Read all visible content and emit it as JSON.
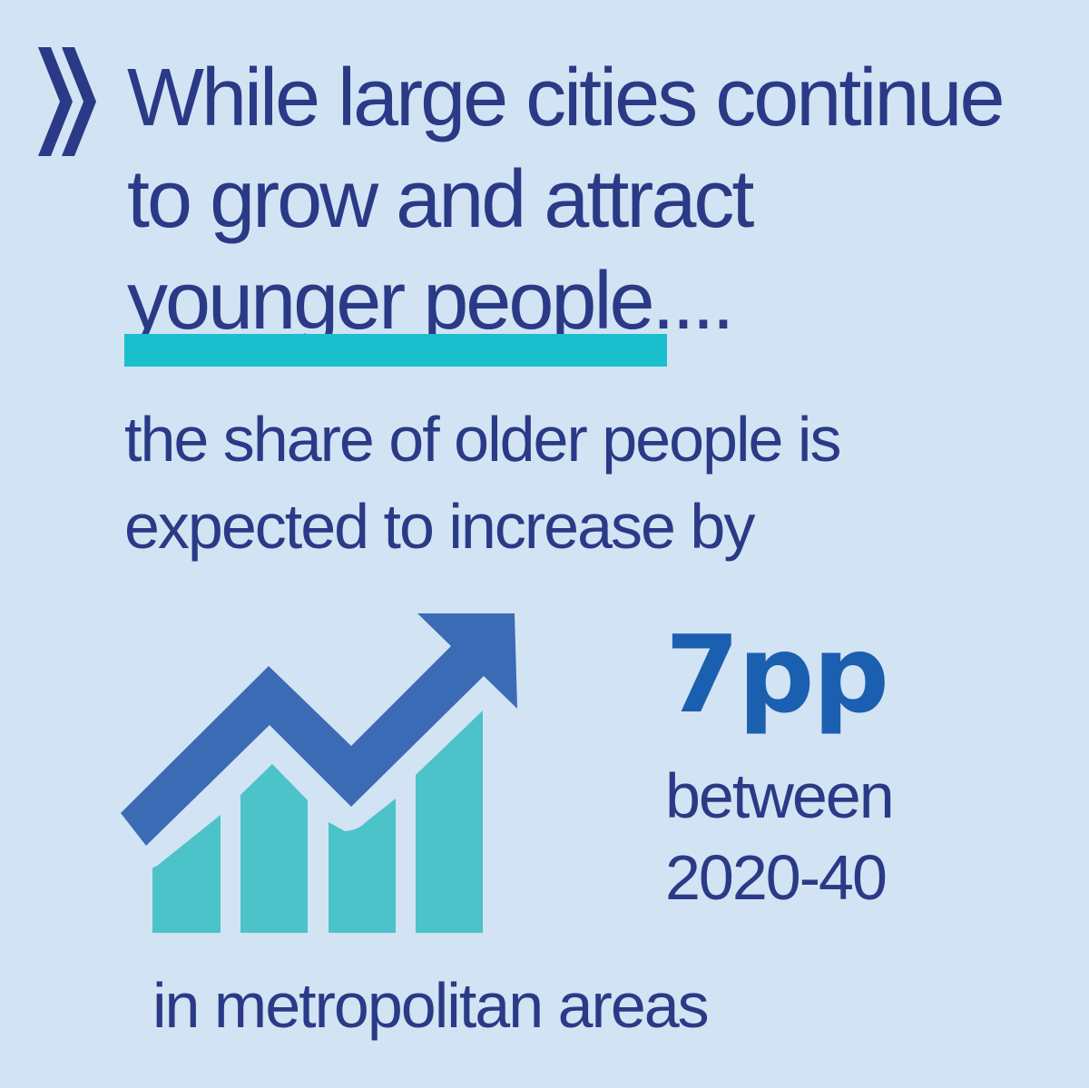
{
  "headline": {
    "lines": [
      "While large cities continue",
      "to grow and attract",
      "younger people...."
    ]
  },
  "subtext": {
    "lines": [
      "the share of older people is",
      "expected to increase by"
    ]
  },
  "stat": {
    "value": "7pp",
    "period_lines": [
      "between",
      "2020-40"
    ]
  },
  "footer": {
    "text": "in metropolitan areas"
  },
  "icons": {
    "logo": "double-chevron-icon",
    "chart": "rising-bar-chart-arrow-icon"
  },
  "colors": {
    "background": "#d2e3f4",
    "text": "#2b3a86",
    "highlight_bar": "#19bfcd",
    "stat_value": "#1b5fb0",
    "arrow": "#3b6bb5",
    "bars": "#4cc2c9"
  }
}
